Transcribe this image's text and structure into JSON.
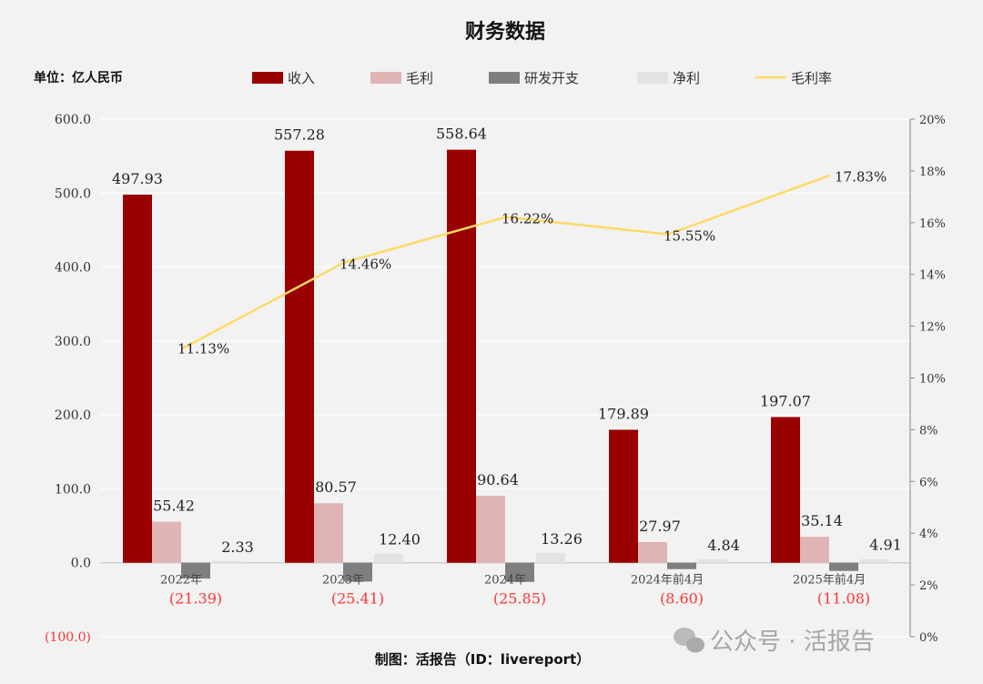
{
  "chart_data": {
    "type": "bar",
    "title": "财务数据",
    "unit_label": "单位：亿人民币",
    "source": "制图：活报告（ID：livereport）",
    "watermark": "公众号 · 活报告",
    "categories": [
      "2022年",
      "2023年",
      "2024年",
      "2024年前4月",
      "2025年前4月"
    ],
    "series": [
      {
        "name": "收入",
        "type": "bar",
        "axis": "left",
        "color": "#990000",
        "values": [
          497.93,
          557.28,
          558.64,
          179.89,
          197.07
        ],
        "labels": [
          "497.93",
          "557.28",
          "558.64",
          "179.89",
          "197.07"
        ]
      },
      {
        "name": "毛利",
        "type": "bar",
        "axis": "left",
        "color": "#e0b4b4",
        "values": [
          55.42,
          80.57,
          90.64,
          27.97,
          35.14
        ],
        "labels": [
          "55.42",
          "80.57",
          "90.64",
          "27.97",
          "35.14"
        ]
      },
      {
        "name": "研发开支",
        "type": "bar",
        "axis": "left",
        "color": "#7f7f7f",
        "values": [
          -21.39,
          -25.41,
          -25.85,
          -8.6,
          -11.08
        ],
        "labels": [
          "(21.39)",
          "(25.41)",
          "(25.85)",
          "(8.60)",
          "(11.08)"
        ]
      },
      {
        "name": "净利",
        "type": "bar",
        "axis": "left",
        "color": "#e3e3e3",
        "values": [
          2.33,
          12.4,
          13.26,
          4.84,
          4.91
        ],
        "labels": [
          "2.33",
          "12.40",
          "13.26",
          "4.84",
          "4.91"
        ]
      },
      {
        "name": "毛利率",
        "type": "line",
        "axis": "right",
        "color": "#ffd966",
        "values": [
          11.13,
          14.46,
          16.22,
          15.55,
          17.83
        ],
        "labels": [
          "11.13%",
          "14.46%",
          "16.22%",
          "15.55%",
          "17.83%"
        ]
      }
    ],
    "left_axis": {
      "ylim": [
        -100,
        600
      ],
      "ticks": [
        "(100.0)",
        "0.0",
        "100.0",
        "200.0",
        "300.0",
        "400.0",
        "500.0",
        "600.0"
      ],
      "tick_values": [
        -100,
        0,
        100,
        200,
        300,
        400,
        500,
        600
      ]
    },
    "right_axis": {
      "ylim": [
        0,
        20
      ],
      "ticks": [
        "0%",
        "2%",
        "4%",
        "6%",
        "8%",
        "10%",
        "12%",
        "14%",
        "16%",
        "18%",
        "20%"
      ],
      "tick_values": [
        0,
        2,
        4,
        6,
        8,
        10,
        12,
        14,
        16,
        18,
        20
      ]
    },
    "legend": "top",
    "grid": true,
    "negative_label_color": "#ff3333"
  }
}
